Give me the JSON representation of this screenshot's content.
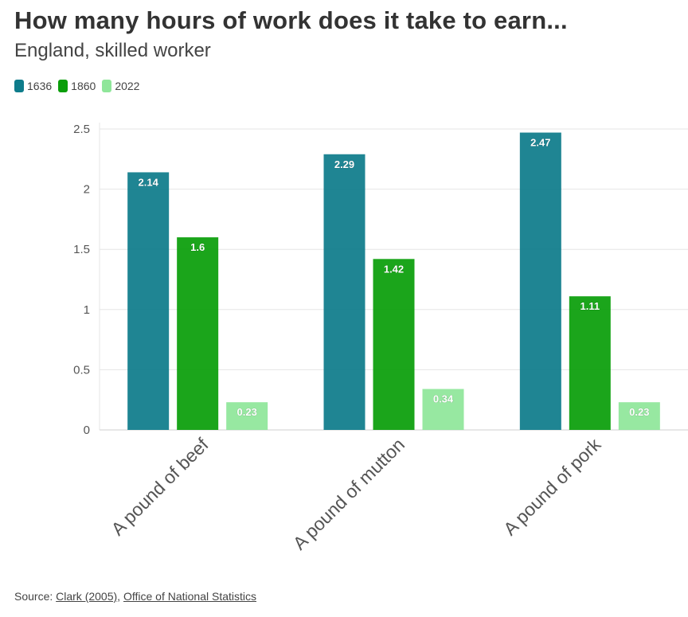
{
  "title": "How many hours of work does it take to earn...",
  "subtitle": "England, skilled worker",
  "source": {
    "label": "Source: ",
    "links": [
      "Clark (2005)",
      "Office of National Statistics"
    ],
    "separator": ", "
  },
  "chart_data": {
    "type": "bar",
    "categories": [
      "A pound of beef",
      "A pound of mutton",
      "A pound of pork"
    ],
    "series": [
      {
        "name": "1636",
        "color": "#0e7c8b",
        "values": [
          2.14,
          2.29,
          2.47
        ],
        "labels": [
          "2.14",
          "2.29",
          "2.47"
        ]
      },
      {
        "name": "1860",
        "color": "#0a9e0a",
        "values": [
          1.6,
          1.42,
          1.11
        ],
        "labels": [
          "1.6",
          "1.42",
          "1.11"
        ]
      },
      {
        "name": "2022",
        "color": "#8fe69a",
        "values": [
          0.23,
          0.34,
          0.23
        ],
        "labels": [
          "0.23",
          "0.34",
          "0.23"
        ]
      }
    ],
    "ylim": [
      0,
      2.5
    ],
    "yticks": [
      0,
      0.5,
      1,
      1.5,
      2,
      2.5
    ],
    "ytick_labels": [
      "0",
      "0.5",
      "1",
      "1.5",
      "2",
      "2.5"
    ],
    "xlabel": "",
    "ylabel": "",
    "grid": true,
    "legend_position": "top-left"
  }
}
